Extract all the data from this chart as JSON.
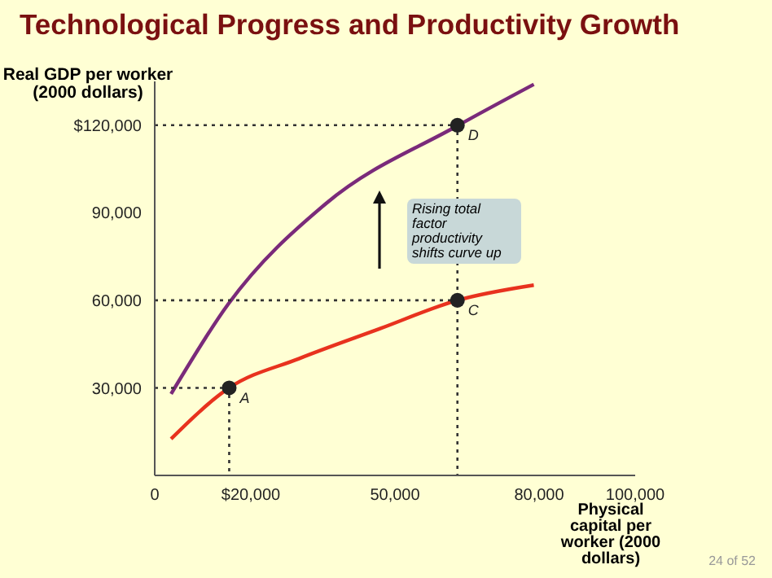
{
  "chart_data": {
    "type": "line",
    "title": "Technological Progress and Productivity Growth",
    "xlabel": "Physical capital per worker (2000 dollars)",
    "ylabel": "Real GDP per worker (2000 dollars)",
    "xlim": [
      0,
      100000
    ],
    "ylim": [
      0,
      135000
    ],
    "xticks": [
      {
        "value": 0,
        "label": "0"
      },
      {
        "value": 20000,
        "label": "$20,000"
      },
      {
        "value": 50000,
        "label": "50,000"
      },
      {
        "value": 80000,
        "label": "80,000"
      },
      {
        "value": 100000,
        "label": "100,000"
      }
    ],
    "yticks": [
      {
        "value": 30000,
        "label": "30,000"
      },
      {
        "value": 60000,
        "label": "60,000"
      },
      {
        "value": 90000,
        "label": "90,000"
      },
      {
        "value": 120000,
        "label": "$120,000"
      }
    ],
    "grid": false,
    "legend": false,
    "series": [
      {
        "color": "#7a2a7a",
        "x": [
          3400,
          15300,
          35600,
          63000,
          78900
        ],
        "values": [
          27900,
          58700,
          93100,
          119800,
          134000
        ]
      },
      {
        "color": "#e8321e",
        "x": [
          3400,
          15500,
          30000,
          46900,
          63000,
          78900
        ],
        "values": [
          12500,
          30000,
          40000,
          50300,
          60000,
          65200
        ]
      },
      {
        "color": "#333333",
        "line_style": "dotted",
        "x": [
          0,
          15500,
          15500
        ],
        "values": [
          30000,
          30000,
          0
        ]
      },
      {
        "color": "#333333",
        "line_style": "dotted",
        "x": [
          0,
          63000
        ],
        "values": [
          60000,
          60000
        ]
      },
      {
        "color": "#333333",
        "line_style": "dotted",
        "x": [
          0,
          63000,
          63000
        ],
        "values": [
          120000,
          120000,
          0
        ]
      },
      {
        "type": "scatter",
        "color": "#222222",
        "x": [
          15500,
          63000,
          63000
        ],
        "values": [
          30000,
          60000,
          120000
        ],
        "value_labels": [
          "A",
          "C",
          "D"
        ]
      }
    ],
    "annotations": [
      "Rising total factor productivity shifts curve up",
      "24 of 52"
    ]
  }
}
